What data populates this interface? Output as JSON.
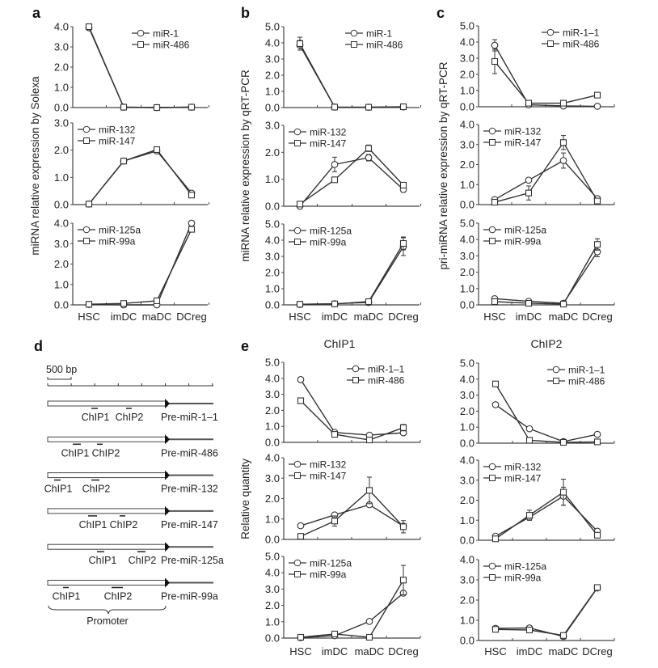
{
  "panel_labels": {
    "a": "a",
    "b": "b",
    "c": "c",
    "d": "d",
    "e": "e"
  },
  "colors": {
    "line": "#333333",
    "marker_fill": "#ffffff",
    "axis": "#444444"
  },
  "chart_data": [
    {
      "panel": "a",
      "type": "line",
      "title": "",
      "ylabel": "miRNA relative expression by Solexa",
      "categories": [
        "HSC",
        "imDC",
        "maDC",
        "DCreg"
      ],
      "subplots": [
        {
          "ylim": [
            0,
            4
          ],
          "legend": "top-right",
          "series": [
            {
              "name": "miR-1",
              "marker": "circle",
              "values": [
                3.95,
                0.02,
                0.0,
                0.02
              ]
            },
            {
              "name": "miR-486",
              "marker": "square",
              "values": [
                4.0,
                0.02,
                0.0,
                0.02
              ]
            }
          ]
        },
        {
          "ylim": [
            0,
            3
          ],
          "legend": "top-left",
          "series": [
            {
              "name": "miR-132",
              "marker": "circle",
              "values": [
                0.02,
                1.6,
                1.97,
                0.42
              ]
            },
            {
              "name": "miR-147",
              "marker": "square",
              "values": [
                0.02,
                1.6,
                2.02,
                0.35
              ]
            }
          ]
        },
        {
          "ylim": [
            0,
            4
          ],
          "legend": "top-left",
          "series": [
            {
              "name": "miR-125a",
              "marker": "circle",
              "values": [
                0.02,
                0.0,
                0.0,
                4.0
              ]
            },
            {
              "name": "miR-99a",
              "marker": "square",
              "values": [
                0.03,
                0.07,
                0.2,
                3.7
              ]
            }
          ]
        }
      ]
    },
    {
      "panel": "b",
      "type": "line",
      "title": "",
      "ylabel": "miRNA relative expression by qRT-PCR",
      "categories": [
        "HSC",
        "imDC",
        "maDC",
        "DCreg"
      ],
      "subplots": [
        {
          "ylim": [
            0,
            5
          ],
          "legend": "top-right",
          "series": [
            {
              "name": "miR-1",
              "marker": "circle",
              "values": [
                3.85,
                0.03,
                0.02,
                0.04
              ],
              "errors": [
                0.3,
                0,
                0,
                0
              ]
            },
            {
              "name": "miR-486",
              "marker": "square",
              "values": [
                3.95,
                0.03,
                0.02,
                0.05
              ],
              "errors": [
                0.4,
                0,
                0,
                0
              ]
            }
          ]
        },
        {
          "ylim": [
            0,
            3
          ],
          "legend": "top-left",
          "series": [
            {
              "name": "miR-132",
              "marker": "circle",
              "values": [
                0.0,
                1.55,
                1.8,
                0.62
              ],
              "errors": [
                0,
                0.27,
                0.12,
                0.1
              ]
            },
            {
              "name": "miR-147",
              "marker": "square",
              "values": [
                0.08,
                0.98,
                2.15,
                0.78
              ],
              "errors": [
                0,
                0.05,
                0.12,
                0.05
              ]
            }
          ]
        },
        {
          "ylim": [
            0,
            5
          ],
          "legend": "top-left",
          "series": [
            {
              "name": "miR-125a",
              "marker": "circle",
              "values": [
                0.03,
                0.07,
                0.15,
                3.6
              ],
              "errors": [
                0,
                0,
                0,
                0.55
              ]
            },
            {
              "name": "miR-99a",
              "marker": "square",
              "values": [
                0.04,
                0.06,
                0.2,
                3.8
              ],
              "errors": [
                0,
                0,
                0,
                0.4
              ]
            }
          ]
        }
      ]
    },
    {
      "panel": "c",
      "type": "line",
      "title": "",
      "ylabel": "pri-miRNA relative expression by qRT-PCR",
      "categories": [
        "HSC",
        "imDC",
        "maDC",
        "DCreg"
      ],
      "subplots": [
        {
          "ylim": [
            0,
            5
          ],
          "legend": "top-right",
          "series": [
            {
              "name": "miR-1–1",
              "marker": "circle",
              "values": [
                3.8,
                0.12,
                0.05,
                0.03
              ],
              "errors": [
                0.35,
                0,
                0,
                0
              ]
            },
            {
              "name": "miR-486",
              "marker": "square",
              "values": [
                2.8,
                0.22,
                0.22,
                0.72
              ],
              "errors": [
                0.75,
                0,
                0,
                0
              ]
            }
          ]
        },
        {
          "ylim": [
            0,
            4
          ],
          "legend": "top-left",
          "series": [
            {
              "name": "miR-132",
              "marker": "circle",
              "values": [
                0.25,
                1.22,
                2.2,
                0.3
              ],
              "errors": [
                0,
                0.1,
                0.38,
                0
              ]
            },
            {
              "name": "miR-147",
              "marker": "square",
              "values": [
                0.12,
                0.58,
                3.1,
                0.18
              ],
              "errors": [
                0,
                0.35,
                0.35,
                0
              ]
            }
          ]
        },
        {
          "ylim": [
            0,
            5
          ],
          "legend": "top-left",
          "series": [
            {
              "name": "miR-125a",
              "marker": "circle",
              "values": [
                0.38,
                0.22,
                0.1,
                3.25
              ],
              "errors": [
                0,
                0,
                0,
                0.3
              ]
            },
            {
              "name": "miR-99a",
              "marker": "square",
              "values": [
                0.2,
                0.1,
                0.05,
                3.7
              ],
              "errors": [
                0,
                0,
                0,
                0.35
              ]
            }
          ]
        }
      ]
    },
    {
      "panel": "e",
      "type": "line",
      "title": "ChIP1",
      "ylabel": "Relative quantity",
      "categories": [
        "HSC",
        "imDC",
        "maDC",
        "DCreg"
      ],
      "subplots": [
        {
          "ylim": [
            0,
            5
          ],
          "legend": "top-right",
          "series": [
            {
              "name": "miR-1–1",
              "marker": "circle",
              "values": [
                3.92,
                0.62,
                0.45,
                0.6
              ]
            },
            {
              "name": "miR-486",
              "marker": "square",
              "values": [
                2.6,
                0.5,
                0.15,
                0.92
              ],
              "errors": [
                0,
                0,
                0,
                0.2
              ]
            }
          ]
        },
        {
          "ylim": [
            0,
            4
          ],
          "legend": "top-left",
          "series": [
            {
              "name": "miR-132",
              "marker": "circle",
              "values": [
                0.67,
                1.2,
                1.7,
                0.65
              ]
            },
            {
              "name": "miR-147",
              "marker": "square",
              "values": [
                0.15,
                0.9,
                2.4,
                0.62
              ],
              "errors": [
                0,
                0.25,
                0.65,
                0.3
              ]
            }
          ]
        },
        {
          "ylim": [
            0,
            5
          ],
          "legend": "top-left",
          "series": [
            {
              "name": "miR-125a",
              "marker": "circle",
              "values": [
                0.03,
                0.15,
                1.02,
                2.75
              ],
              "errors": [
                0,
                0,
                0,
                0.1
              ]
            },
            {
              "name": "miR-99a",
              "marker": "square",
              "values": [
                0.05,
                0.25,
                0.05,
                3.55
              ],
              "errors": [
                0,
                0,
                0,
                0.9
              ]
            }
          ]
        }
      ]
    },
    {
      "panel": "e",
      "type": "line",
      "title": "ChIP2",
      "ylabel": "",
      "categories": [
        "HSC",
        "imDC",
        "maDC",
        "DCreg"
      ],
      "subplots": [
        {
          "ylim": [
            0,
            5
          ],
          "legend": "top-right",
          "series": [
            {
              "name": "miR-1–1",
              "marker": "circle",
              "values": [
                2.4,
                0.9,
                0.1,
                0.55
              ]
            },
            {
              "name": "miR-486",
              "marker": "square",
              "values": [
                3.7,
                0.18,
                0.05,
                0.08
              ]
            }
          ]
        },
        {
          "ylim": [
            0,
            4
          ],
          "legend": "top-left",
          "series": [
            {
              "name": "miR-132",
              "marker": "circle",
              "values": [
                0.2,
                1.15,
                2.2,
                0.45
              ],
              "errors": [
                0,
                0.15,
                0.45,
                0
              ]
            },
            {
              "name": "miR-147",
              "marker": "square",
              "values": [
                0.07,
                1.25,
                2.4,
                0.25
              ],
              "errors": [
                0,
                0.25,
                0.65,
                0
              ]
            }
          ]
        },
        {
          "ylim": [
            0,
            4
          ],
          "legend": "top-left",
          "series": [
            {
              "name": "miR-125a",
              "marker": "circle",
              "values": [
                0.6,
                0.62,
                0.2,
                2.6
              ]
            },
            {
              "name": "miR-99a",
              "marker": "square",
              "values": [
                0.55,
                0.52,
                0.25,
                2.62
              ]
            }
          ]
        }
      ]
    }
  ],
  "diagram": {
    "scale_label": "500 bp",
    "promoter_label": "Promoter",
    "genes": [
      {
        "name": "Pre-miR-1–1",
        "chip1": "ChIP1",
        "chip2": "ChIP2"
      },
      {
        "name": "Pre-miR-486",
        "chip1": "ChIP1",
        "chip2": "ChIP2"
      },
      {
        "name": "Pre-miR-132",
        "chip1": "ChIP1",
        "chip2": "ChIP2"
      },
      {
        "name": "Pre-miR-147",
        "chip1": "ChIP1",
        "chip2": "ChIP2"
      },
      {
        "name": "Pre-miR-125a",
        "chip1": "ChIP1",
        "chip2": "ChIP2"
      },
      {
        "name": "Pre-miR-99a",
        "chip1": "ChIP1",
        "chip2": "ChIP2"
      }
    ]
  }
}
